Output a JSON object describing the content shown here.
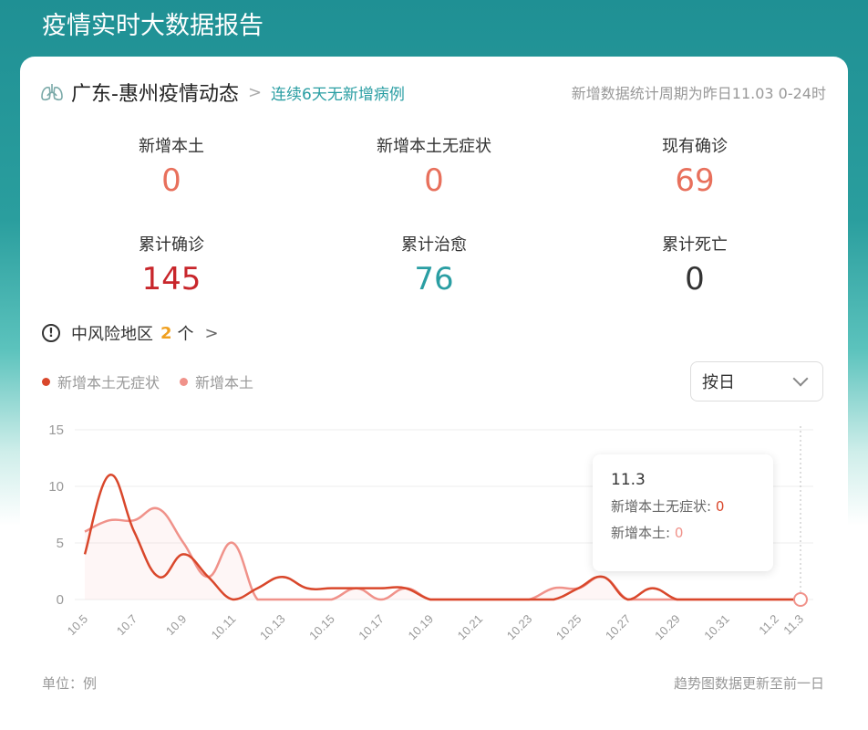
{
  "page": {
    "title": "疫情实时大数据报告"
  },
  "header": {
    "region": "广东-惠州疫情动态",
    "streak": "连续6天无新增病例",
    "period": "新增数据统计周期为昨日11.03 0-24时"
  },
  "stats": [
    {
      "label": "新增本土",
      "value": "0",
      "color": "#e8705c"
    },
    {
      "label": "新增本土无症状",
      "value": "0",
      "color": "#e8705c"
    },
    {
      "label": "现有确诊",
      "value": "69",
      "color": "#e8705c"
    },
    {
      "label": "累计确诊",
      "value": "145",
      "color": "#c8262b"
    },
    {
      "label": "累计治愈",
      "value": "76",
      "color": "#2a9ea3"
    },
    {
      "label": "累计死亡",
      "value": "0",
      "color": "#333333"
    }
  ],
  "risk": {
    "label": "中风险地区",
    "count": "2",
    "unit": "个"
  },
  "legend": [
    {
      "label": "新增本土无症状",
      "color": "#d9472b"
    },
    {
      "label": "新增本土",
      "color": "#f0928a"
    }
  ],
  "select": {
    "value": "按日"
  },
  "tooltip": {
    "date": "11.3",
    "rows": [
      {
        "label": "新增本土无症状:",
        "value": "0"
      },
      {
        "label": "新增本土:",
        "value": "0"
      }
    ]
  },
  "footer": {
    "unit": "单位：例",
    "note": "趋势图数据更新至前一日"
  },
  "chart_data": {
    "type": "line",
    "title": "",
    "xlabel": "",
    "ylabel": "",
    "ylim": [
      0,
      15
    ],
    "yticks": [
      0,
      5,
      10,
      15
    ],
    "grid": true,
    "legend_position": "top-left",
    "x": [
      "10.5",
      "10.6",
      "10.7",
      "10.8",
      "10.9",
      "10.10",
      "10.11",
      "10.12",
      "10.13",
      "10.14",
      "10.15",
      "10.16",
      "10.17",
      "10.18",
      "10.19",
      "10.20",
      "10.21",
      "10.22",
      "10.23",
      "10.24",
      "10.25",
      "10.26",
      "10.27",
      "10.28",
      "10.29",
      "10.30",
      "10.31",
      "11.1",
      "11.2",
      "11.3"
    ],
    "xtick_labels": [
      "10.5",
      "10.7",
      "10.9",
      "10.11",
      "10.13",
      "10.15",
      "10.17",
      "10.19",
      "10.21",
      "10.23",
      "10.25",
      "10.27",
      "10.29",
      "10.31",
      "11.2",
      "11.3"
    ],
    "series": [
      {
        "name": "新增本土无症状",
        "color": "#d9472b",
        "values": [
          4,
          11,
          6,
          2,
          4,
          2,
          0,
          1,
          2,
          1,
          1,
          1,
          1,
          1,
          0,
          0,
          0,
          0,
          0,
          0,
          1,
          2,
          0,
          1,
          0,
          0,
          0,
          0,
          0,
          0
        ]
      },
      {
        "name": "新增本土",
        "color": "#f0928a",
        "values": [
          6,
          7,
          7,
          8,
          5,
          2,
          5,
          0,
          0,
          0,
          0,
          1,
          0,
          1,
          0,
          0,
          0,
          0,
          0,
          1,
          1,
          2,
          0,
          0,
          0,
          0,
          0,
          0,
          0,
          0
        ]
      }
    ]
  }
}
